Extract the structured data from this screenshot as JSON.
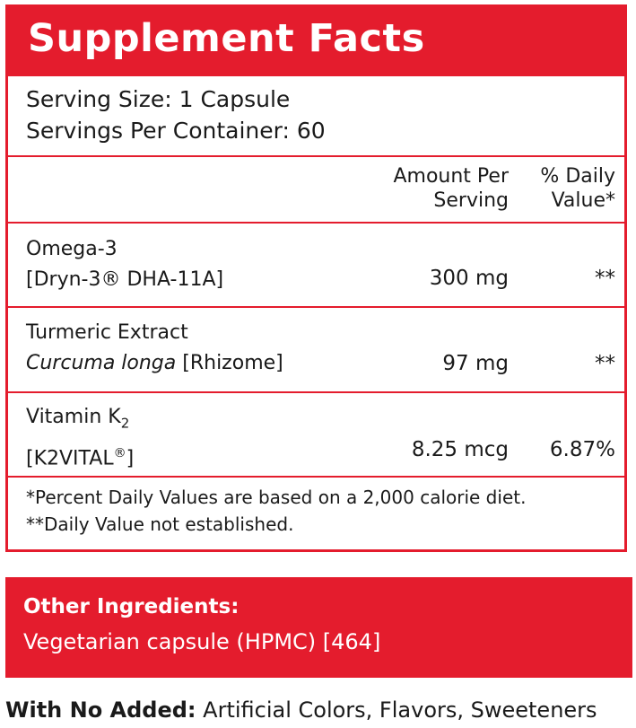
{
  "title": "Supplement Facts",
  "serving": {
    "size": "Serving Size: 1 Capsule",
    "per_container": "Servings Per Container: 60"
  },
  "columns": {
    "amount_line1": "Amount Per",
    "amount_line2": "Serving",
    "dv_line1": "% Daily",
    "dv_line2": "Value*"
  },
  "ingredients": [
    {
      "name": "Omega-3",
      "source": "[Dryn-3® DHA-11A]",
      "amount": "300 mg",
      "dv": "**"
    },
    {
      "name": "Turmeric Extract",
      "source_italic": "Curcuma longa",
      "source_rest": " [Rhizome]",
      "amount": "97 mg",
      "dv": "**"
    },
    {
      "name": "Vitamin K",
      "name_sub": "2",
      "source": "[K2VITAL",
      "source_sup": "®",
      "source_end": "]",
      "amount": "8.25 mcg",
      "dv": "6.87%"
    }
  ],
  "footnotes": {
    "line1": "*Percent Daily Values are based on a 2,000 calorie diet.",
    "line2": "**Daily Value not established."
  },
  "other_ingredients": {
    "title": "Other Ingredients:",
    "text": "Vegetarian capsule (HPMC) [464]"
  },
  "no_added": {
    "label": "With No Added:",
    "text": " Artificial Colors, Flavors, Sweeteners"
  },
  "colors": {
    "brand_red": "#e41c2d",
    "text": "#1a1a1a",
    "background": "#ffffff"
  }
}
